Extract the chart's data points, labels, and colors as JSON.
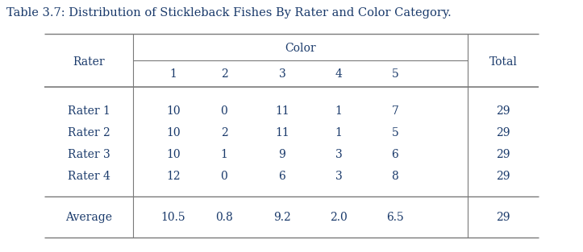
{
  "title": "Table 3.7: Distribution of Stickleback Fishes By Rater and Color Category.",
  "title_fontsize": 10.5,
  "col_header_top": "Color",
  "col_header_sub": [
    "1",
    "2",
    "3",
    "4",
    "5"
  ],
  "row_header": "Rater",
  "total_header": "Total",
  "raters": [
    "Rater 1",
    "Rater 2",
    "Rater 3",
    "Rater 4"
  ],
  "data": [
    [
      10,
      0,
      11,
      1,
      7,
      29
    ],
    [
      10,
      2,
      11,
      1,
      5,
      29
    ],
    [
      10,
      1,
      9,
      3,
      6,
      29
    ],
    [
      12,
      0,
      6,
      3,
      8,
      29
    ]
  ],
  "average_label": "Average",
  "average_row": [
    "10.5",
    "0.8",
    "9.2",
    "2.0",
    "6.5",
    "29"
  ],
  "text_color": "#1a3a6b",
  "bg_color": "#ffffff",
  "line_color": "#7a7a7a",
  "font_family": "serif",
  "data_fontsize": 10,
  "header_fontsize": 10
}
